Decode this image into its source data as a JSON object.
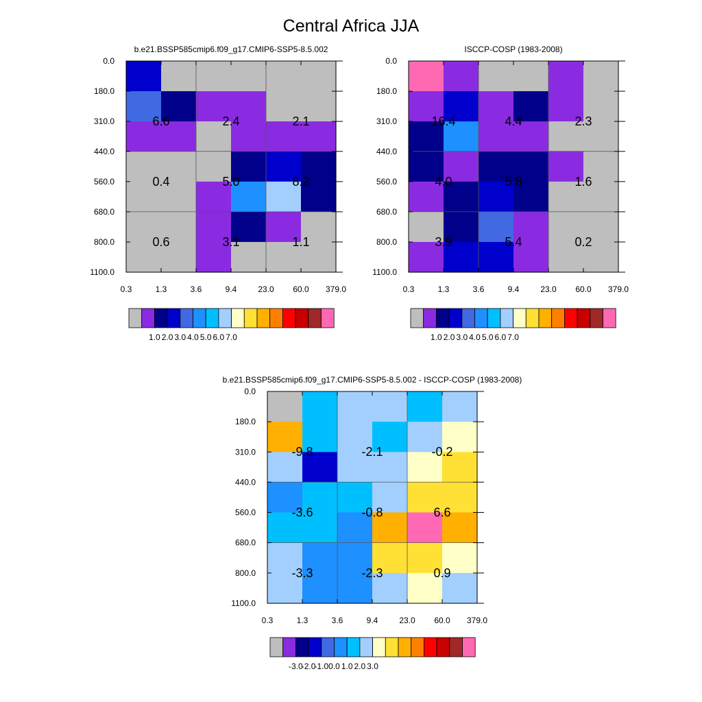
{
  "figure_title": "Central Africa JJA",
  "chart_data": [
    {
      "type": "heatmap",
      "title": "b.e21.BSSP585cmip6.f09_g17.CMIP6-SSP5-8.5.002",
      "x_tick_labels": [
        "0.3",
        "1.3",
        "3.6",
        "9.4",
        "23.0",
        "60.0",
        "379.0"
      ],
      "y_tick_labels": [
        "0.0",
        "180.0",
        "310.0",
        "440.0",
        "560.0",
        "680.0",
        "800.0",
        "1100.0"
      ],
      "cell_colors": [
        [
          "#0000cd",
          "#bebebe",
          "#bebebe",
          "#bebebe",
          "#bebebe",
          "#bebebe"
        ],
        [
          "#4169e1",
          "#00008b",
          "#8a2be2",
          "#8a2be2",
          "#bebebe",
          "#bebebe"
        ],
        [
          "#8a2be2",
          "#8a2be2",
          "#bebebe",
          "#8a2be2",
          "#8a2be2",
          "#8a2be2"
        ],
        [
          "#bebebe",
          "#bebebe",
          "#bebebe",
          "#00008b",
          "#0000cd",
          "#00008b"
        ],
        [
          "#bebebe",
          "#bebebe",
          "#8a2be2",
          "#1e90ff",
          "#a2cffe",
          "#00008b"
        ],
        [
          "#bebebe",
          "#bebebe",
          "#8a2be2",
          "#00008b",
          "#8a2be2",
          "#bebebe"
        ],
        [
          "#bebebe",
          "#bebebe",
          "#8a2be2",
          "#bebebe",
          "#bebebe",
          "#bebebe"
        ]
      ],
      "bin_labels": [
        [
          "6.6",
          "2.4",
          "2.1"
        ],
        [
          "0.4",
          "5.0",
          "8.2"
        ],
        [
          "0.6",
          "3.1",
          "1.1"
        ]
      ],
      "colorbar": {
        "colors": [
          "#bebebe",
          "#8a2be2",
          "#00008b",
          "#0000cd",
          "#4169e1",
          "#1e90ff",
          "#00bfff",
          "#a2cffe",
          "#ffffc8",
          "#ffe135",
          "#ffb000",
          "#ff8000",
          "#ff0000",
          "#c80000",
          "#a02828",
          "#ff69b4"
        ],
        "labels": [
          "1.0",
          "2.0",
          "3.0",
          "4.0",
          "5.0",
          "6.0",
          "7.0"
        ]
      }
    },
    {
      "type": "heatmap",
      "title": "ISCCP-COSP (1983-2008)",
      "x_tick_labels": [
        "0.3",
        "1.3",
        "3.6",
        "9.4",
        "23.0",
        "60.0",
        "379.0"
      ],
      "y_tick_labels": [
        "0.0",
        "180.0",
        "310.0",
        "440.0",
        "560.0",
        "680.0",
        "800.0",
        "1100.0"
      ],
      "cell_colors": [
        [
          "#ff69b4",
          "#8a2be2",
          "#bebebe",
          "#bebebe",
          "#8a2be2",
          "#bebebe"
        ],
        [
          "#8a2be2",
          "#0000cd",
          "#8a2be2",
          "#00008b",
          "#8a2be2",
          "#bebebe"
        ],
        [
          "#00008b",
          "#1e90ff",
          "#8a2be2",
          "#8a2be2",
          "#bebebe",
          "#bebebe"
        ],
        [
          "#00008b",
          "#8a2be2",
          "#00008b",
          "#00008b",
          "#8a2be2",
          "#bebebe"
        ],
        [
          "#8a2be2",
          "#00008b",
          "#0000cd",
          "#00008b",
          "#bebebe",
          "#bebebe"
        ],
        [
          "#bebebe",
          "#00008b",
          "#4169e1",
          "#8a2be2",
          "#bebebe",
          "#bebebe"
        ],
        [
          "#8a2be2",
          "#0000cd",
          "#0000cd",
          "#8a2be2",
          "#bebebe",
          "#bebebe"
        ]
      ],
      "bin_labels": [
        [
          "16.4",
          "4.4",
          "2.3"
        ],
        [
          "4.0",
          "5.8",
          "1.6"
        ],
        [
          "3.9",
          "5.4",
          "0.2"
        ]
      ],
      "colorbar": {
        "colors": [
          "#bebebe",
          "#8a2be2",
          "#00008b",
          "#0000cd",
          "#4169e1",
          "#1e90ff",
          "#00bfff",
          "#a2cffe",
          "#ffffc8",
          "#ffe135",
          "#ffb000",
          "#ff8000",
          "#ff0000",
          "#c80000",
          "#a02828",
          "#ff69b4"
        ],
        "labels": [
          "1.0",
          "2.0",
          "3.0",
          "4.0",
          "5.0",
          "6.0",
          "7.0"
        ]
      }
    },
    {
      "type": "heatmap",
      "title": "b.e21.BSSP585cmip6.f09_g17.CMIP6-SSP5-8.5.002 - ISCCP-COSP (1983-2008)",
      "x_tick_labels": [
        "0.3",
        "1.3",
        "3.6",
        "9.4",
        "23.0",
        "60.0",
        "379.0"
      ],
      "y_tick_labels": [
        "0.0",
        "180.0",
        "310.0",
        "440.0",
        "560.0",
        "680.0",
        "800.0",
        "1100.0"
      ],
      "cell_colors": [
        [
          "#bebebe",
          "#00bfff",
          "#a2cffe",
          "#a2cffe",
          "#00bfff",
          "#a2cffe"
        ],
        [
          "#ffb000",
          "#00bfff",
          "#a2cffe",
          "#00bfff",
          "#a2cffe",
          "#ffffc8"
        ],
        [
          "#a2cffe",
          "#0000cd",
          "#a2cffe",
          "#a2cffe",
          "#ffffc8",
          "#ffe135"
        ],
        [
          "#1e90ff",
          "#00bfff",
          "#00bfff",
          "#a2cffe",
          "#ffe135",
          "#ffe135"
        ],
        [
          "#00bfff",
          "#00bfff",
          "#1e90ff",
          "#ffb000",
          "#ff69b4",
          "#ffb000"
        ],
        [
          "#a2cffe",
          "#1e90ff",
          "#1e90ff",
          "#ffe135",
          "#ffe135",
          "#ffffc8"
        ],
        [
          "#a2cffe",
          "#1e90ff",
          "#1e90ff",
          "#a2cffe",
          "#ffffc8",
          "#a2cffe"
        ]
      ],
      "bin_labels": [
        [
          "-9.8",
          "-2.1",
          "-0.2"
        ],
        [
          "-3.6",
          "-0.8",
          "6.6"
        ],
        [
          "-3.3",
          "-2.3",
          "0.9"
        ]
      ],
      "colorbar": {
        "colors": [
          "#bebebe",
          "#8a2be2",
          "#00008b",
          "#0000cd",
          "#4169e1",
          "#1e90ff",
          "#00bfff",
          "#a2cffe",
          "#ffffc8",
          "#ffe135",
          "#ffb000",
          "#ff8000",
          "#ff0000",
          "#c80000",
          "#a02828",
          "#ff69b4"
        ],
        "labels": [
          "-3.0",
          "-2.0",
          "-1.0",
          "0.0",
          "1.0",
          "2.0",
          "3.0"
        ]
      }
    }
  ]
}
